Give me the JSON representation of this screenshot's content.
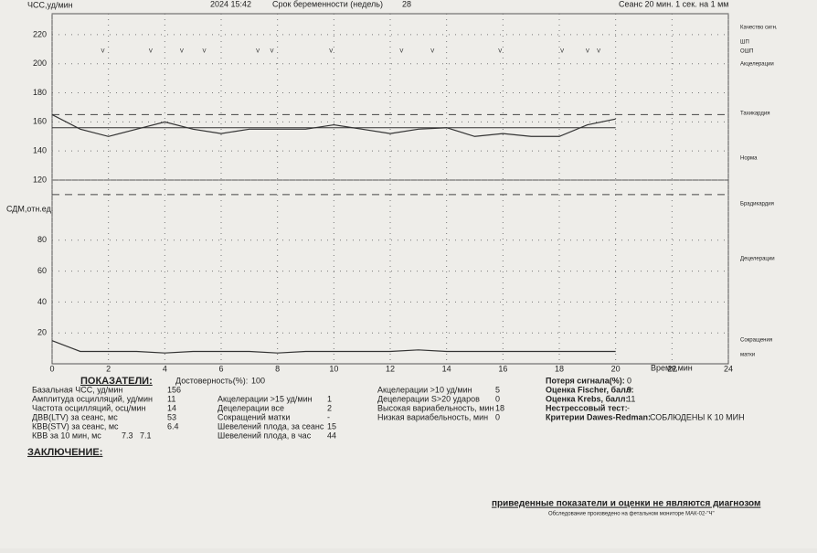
{
  "header": {
    "datetime": "2024 15:42",
    "term_label": "Срок беременности (недель)",
    "term": 28,
    "session": "Сеанс 20 мин. 1 сек. на 1 мм"
  },
  "chart_data": {
    "type": "line",
    "y_label": "ЧСС,уд/мин",
    "y2_label": "СДМ,отн.ед.",
    "x_label": "Время,мин",
    "xlim": [
      0,
      24
    ],
    "xticks": [
      0,
      2,
      4,
      6,
      8,
      10,
      12,
      14,
      16,
      18,
      20,
      22,
      24
    ],
    "ylim": [
      120,
      230
    ],
    "yticks": [
      120,
      140,
      160,
      180,
      200,
      220
    ],
    "y2lim": [
      0,
      100
    ],
    "y2ticks": [
      20,
      40,
      60,
      80
    ],
    "x": [
      0,
      1,
      2,
      3,
      4,
      5,
      6,
      7,
      8,
      9,
      10,
      11,
      12,
      13,
      14,
      15,
      16,
      17,
      18,
      19,
      20
    ],
    "series": [
      {
        "name": "ЧСС",
        "color": "#333333",
        "values": [
          165,
          155,
          150,
          155,
          160,
          155,
          152,
          155,
          155,
          155,
          158,
          155,
          152,
          155,
          156,
          150,
          152,
          150,
          150,
          158,
          162
        ]
      },
      {
        "name": "Сокращения матки",
        "color": "#333333",
        "axis": "y2",
        "values": [
          15,
          8,
          8,
          8,
          7,
          8,
          8,
          8,
          7,
          8,
          8,
          8,
          8,
          9,
          8,
          8,
          8,
          8,
          8,
          8,
          8
        ]
      }
    ],
    "baseline": 156,
    "reference_lines": [
      165,
      110
    ],
    "accel_marks": {
      "label": "V",
      "x": [
        1.8,
        3.5,
        4.6,
        5.4,
        7.3,
        7.8,
        9.9,
        12.4,
        13.5,
        15.9,
        18.1,
        19.0,
        19.4
      ]
    },
    "legend": [
      "Качество сигн.",
      "ШП",
      "ОШП",
      "Акцелерации",
      "Тахикардия",
      "Норма",
      "Брадикардия",
      "Децелерации",
      "Сокращения",
      "матки"
    ]
  },
  "indicators": {
    "title": "ПОКАЗАТЕЛИ:",
    "columns": [
      [
        [
          "Базальная ЧСС, уд/мин",
          156
        ],
        [
          "Амплитуда осцилляций, уд/мин",
          11
        ],
        [
          "Частота осцилляций, осц/мин",
          14
        ],
        [
          "ДВВ(LTV) за сеанс, мс",
          53
        ],
        [
          "КВВ(STV) за сеанс, мс",
          6.4
        ],
        [
          "КВВ за 10 мин, мс",
          7.3,
          7.1
        ]
      ],
      [
        [
          "Достоверность(%):",
          100
        ],
        [
          "Акцелерации >15 уд/мин",
          1
        ],
        [
          "Децелерации все",
          2
        ],
        [
          "Сокращений матки",
          "-"
        ],
        [
          "Шевелений плода, за сеанс",
          15
        ],
        [
          "Шевелений плода, в час",
          44
        ]
      ],
      [
        [
          "Акцелерации >10 уд/мин",
          5
        ],
        [
          "Децелерации S>20 ударов",
          0
        ],
        [
          "Высокая вариабельность, мин",
          18
        ],
        [
          "Низкая вариабельность, мин",
          0
        ]
      ],
      [
        [
          "Потеря сигнала(%):",
          0
        ],
        [
          "Оценка Fischer, балл:",
          9
        ],
        [
          "Оценка Krebs, балл:",
          11
        ],
        [
          "Нестрессовый тест:",
          "-"
        ],
        [
          "Критерии Dawes-Redman:",
          "СОБЛЮДЕНЫ К 10 МИН"
        ]
      ]
    ]
  },
  "conclusion": "ЗАКЛЮЧЕНИЕ:",
  "footer": {
    "disclaimer": "приведенные показатели и оценки не являются диагнозом",
    "device": "Обследование произведено на фетальном мониторе МАК-02-\"Ч\""
  }
}
